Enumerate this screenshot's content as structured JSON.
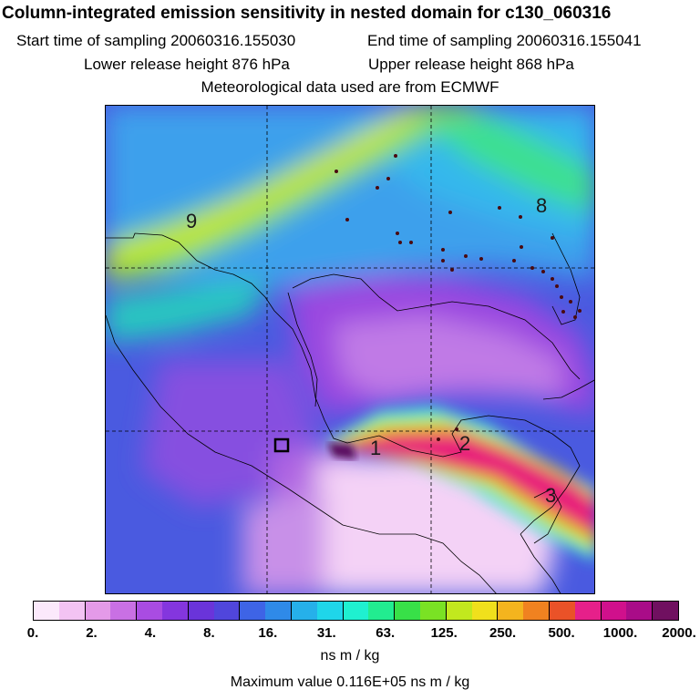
{
  "header": {
    "title": "Column-integrated emission sensitivity in nested domain for c130_060316",
    "start_label": "Start time of sampling 20060316.155030",
    "end_label": "End time of sampling 20060316.155041",
    "lower_label": "Lower release height  876 hPa",
    "upper_label": "Upper release height  868 hPa",
    "met_label": "Meteorological data used are from ECMWF"
  },
  "map": {
    "contour_labels": [
      "9",
      "8",
      "1",
      "2",
      "3"
    ]
  },
  "legend": {
    "colors": [
      "#fbe9fb",
      "#f3c3f3",
      "#e49ae8",
      "#c970e4",
      "#a94ce2",
      "#8436de",
      "#6a34da",
      "#5046dc",
      "#3e64e6",
      "#2f8ae8",
      "#26b0ea",
      "#1fd6ea",
      "#1ff0d0",
      "#22ec90",
      "#38e048",
      "#7ae224",
      "#c2e81e",
      "#f0e01c",
      "#f4b41e",
      "#f08220",
      "#ea5228",
      "#e6208a",
      "#d0108c",
      "#a90c88",
      "#701060"
    ],
    "tick_labels": [
      "0.",
      "2.",
      "4.",
      "8.",
      "16.",
      "31.",
      "63.",
      "125.",
      "250.",
      "500.",
      "1000.",
      "2000."
    ],
    "unit": "ns m / kg"
  },
  "footer": {
    "max_value": "Maximum value  0.116E+05 ns m / kg"
  }
}
